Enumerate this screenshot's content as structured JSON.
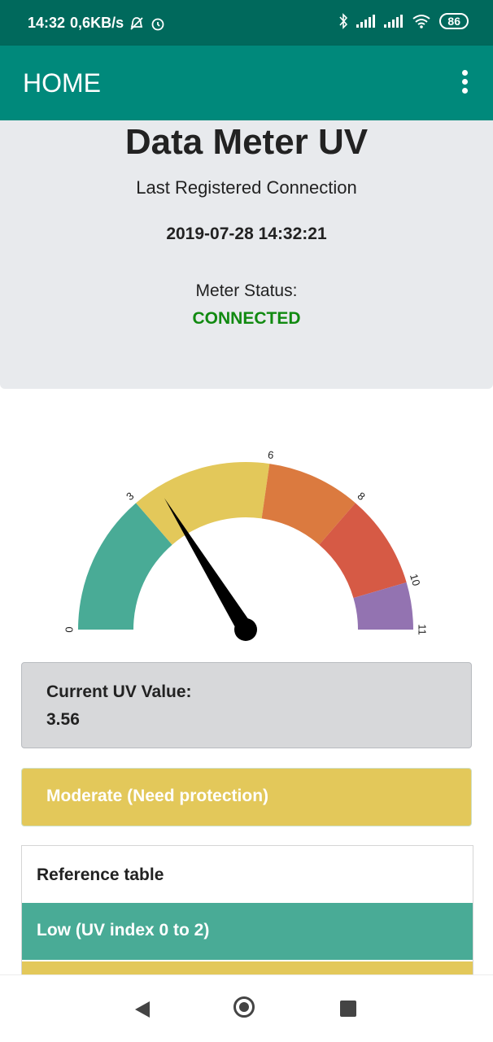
{
  "status_bar": {
    "time": "14:32",
    "net_speed": "0,6KB/s",
    "icons": [
      "dnd-off-icon",
      "alarm-icon",
      "bluetooth-icon",
      "signal-icon",
      "signal-icon",
      "wifi-icon"
    ],
    "battery": "86"
  },
  "app_bar": {
    "title": "HOME",
    "menu_icon": "more-vert-icon"
  },
  "info": {
    "title": "Data Meter UV",
    "subtitle": "Last Registered Connection",
    "datetime": "2019-07-28 14:32:21",
    "status_label": "Meter Status:",
    "status_value": "CONNECTED",
    "status_color": "#118a11"
  },
  "gauge": {
    "min": 0,
    "max": 11,
    "value": 3.56,
    "tick_labels": [
      "0",
      "3",
      "6",
      "8",
      "10",
      "11"
    ],
    "bands": [
      {
        "from": 0,
        "to": 3,
        "color": "#49ab96"
      },
      {
        "from": 3,
        "to": 6,
        "color": "#e3c85a"
      },
      {
        "from": 6,
        "to": 8,
        "color": "#db7a3f"
      },
      {
        "from": 8,
        "to": 10,
        "color": "#d65a45"
      },
      {
        "from": 10,
        "to": 11,
        "color": "#9373b1"
      }
    ]
  },
  "current": {
    "label": "Current UV Value:",
    "value": "3.56"
  },
  "level": {
    "text": "Moderate (Need protection)",
    "color": "#e3c85a"
  },
  "reference": {
    "title": "Reference table",
    "rows": [
      {
        "label": "Low (UV index 0 to 2)",
        "color": "#49ab96"
      }
    ]
  },
  "nav": {
    "back_icon": "back-triangle-icon",
    "home_icon": "home-circle-icon",
    "recent_icon": "recent-square-icon"
  }
}
